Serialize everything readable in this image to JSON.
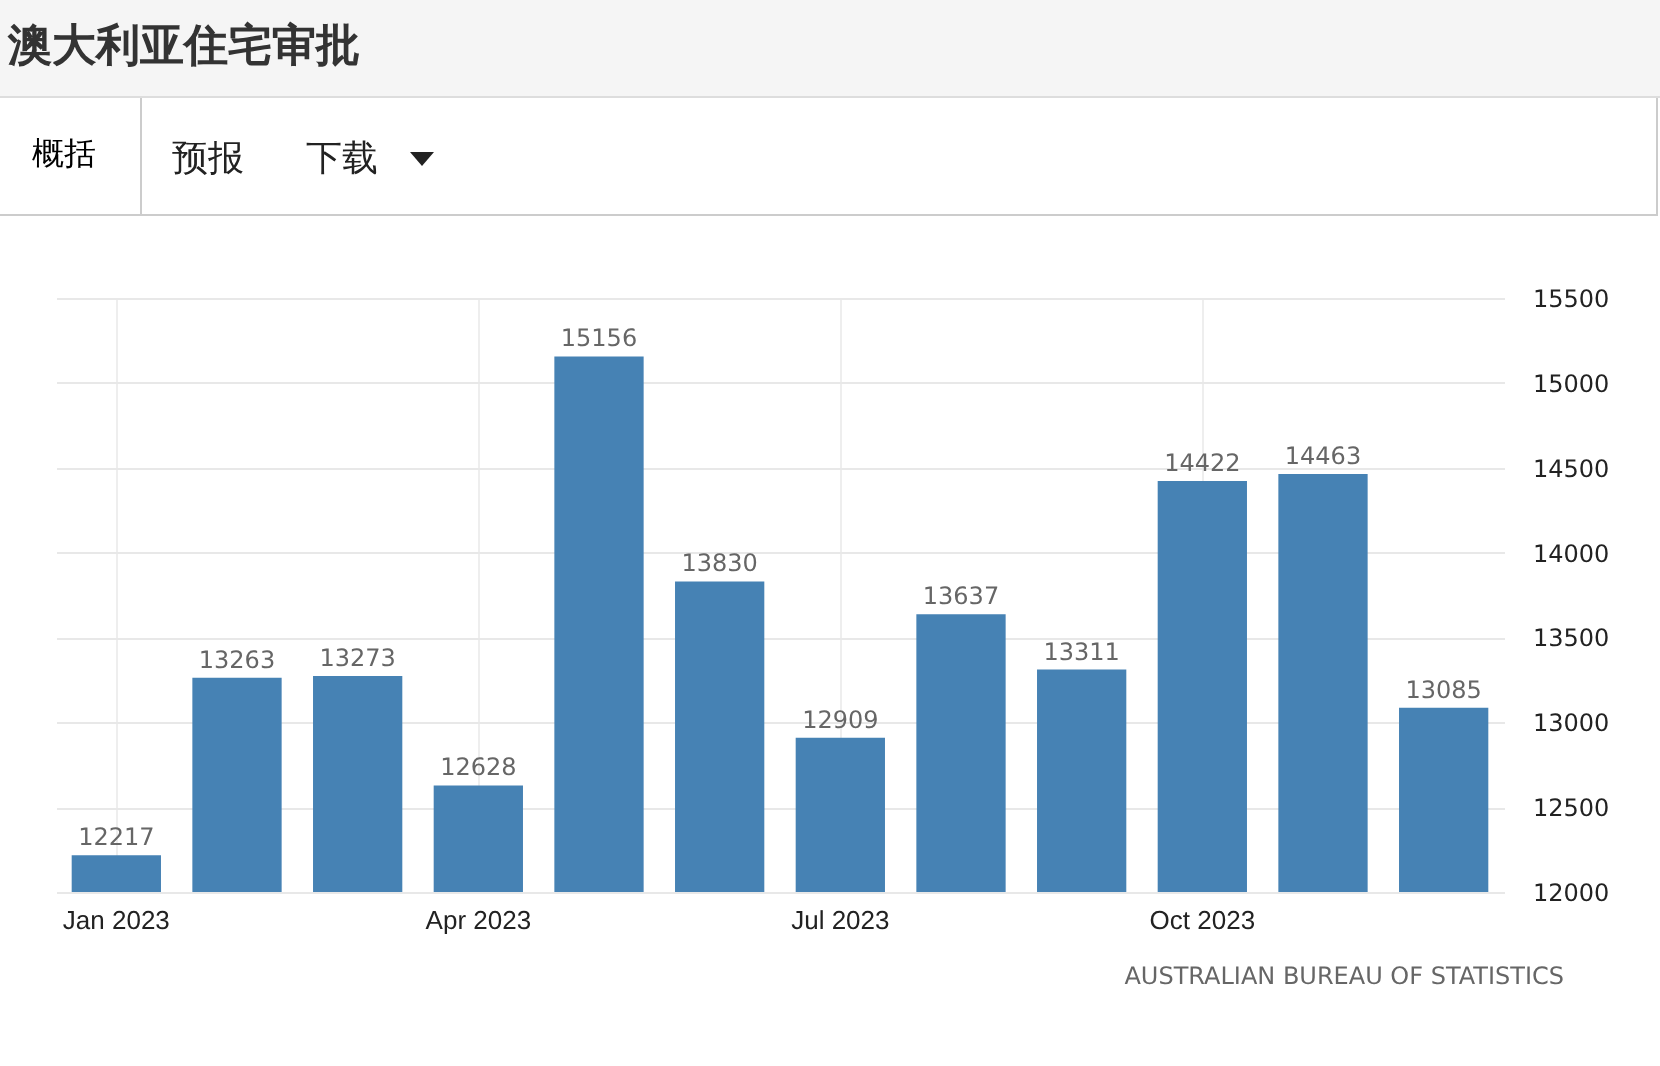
{
  "chart_data": {
    "type": "bar",
    "title": "澳大利亚住宅审批",
    "categories": [
      "Jan 2023",
      null,
      null,
      "Apr 2023",
      null,
      null,
      "Jul 2023",
      null,
      null,
      "Oct 2023",
      null,
      null
    ],
    "values": [
      12217,
      13263,
      13273,
      12628,
      15156,
      13830,
      12909,
      13637,
      13311,
      14422,
      14463,
      13085
    ],
    "color": "#4682b4",
    "ylim": [
      12000,
      15500
    ],
    "yticks": [
      12000,
      12500,
      13000,
      13500,
      14000,
      14500,
      15000,
      15500
    ],
    "grid": true,
    "data_labels": true,
    "annotations": [
      "概括",
      "预报",
      "下载",
      "AUSTRALIAN BUREAU OF STATISTICS"
    ]
  }
}
